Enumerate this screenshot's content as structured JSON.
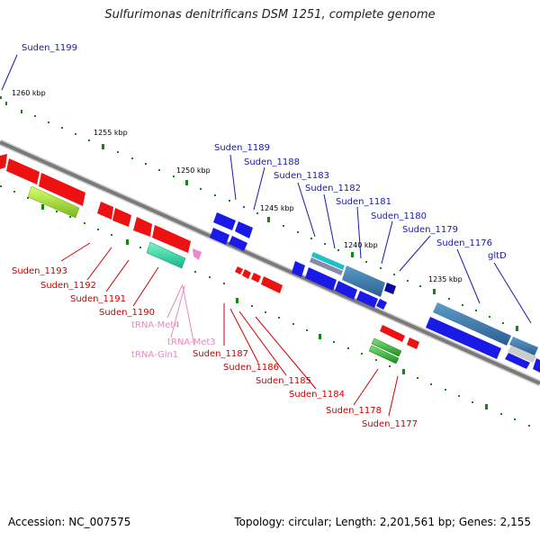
{
  "title": "Sulfurimonas denitrificans DSM 1251, complete genome",
  "accession": "Accession: NC_007575",
  "summary": "Topology: circular; Length: 2,201,561 bp; Genes: 2,155",
  "scale_labels": [
    "1260 kbp",
    "1255 kbp",
    "1250 kbp",
    "1245 kbp",
    "1240 kbp",
    "1235 kbp"
  ],
  "labels_top": [
    "Suden_1199",
    "Suden_1189",
    "Suden_1188",
    "Suden_1183",
    "Suden_1182",
    "Suden_1181",
    "Suden_1180",
    "Suden_1179",
    "Suden_1176",
    "gltD"
  ],
  "labels_bottom_red": [
    "Suden_1193",
    "Suden_1192",
    "Suden_1191",
    "Suden_1190",
    "Suden_1187",
    "Suden_1186",
    "Suden_1185",
    "Suden_1184",
    "Suden_1178",
    "Suden_1177"
  ],
  "labels_trna": [
    "tRNA-Met4",
    "tRNA-Met3",
    "tRNA-Gln1"
  ],
  "colors": {
    "forward": "#1a1ae6",
    "reverse": "#ee1111",
    "trna": "#ee88cc",
    "backbone": "#888888",
    "ticks": "#118811",
    "label_blue": "#1a1aa8",
    "label_red": "#cc0000",
    "label_pink": "#e08cc0"
  }
}
